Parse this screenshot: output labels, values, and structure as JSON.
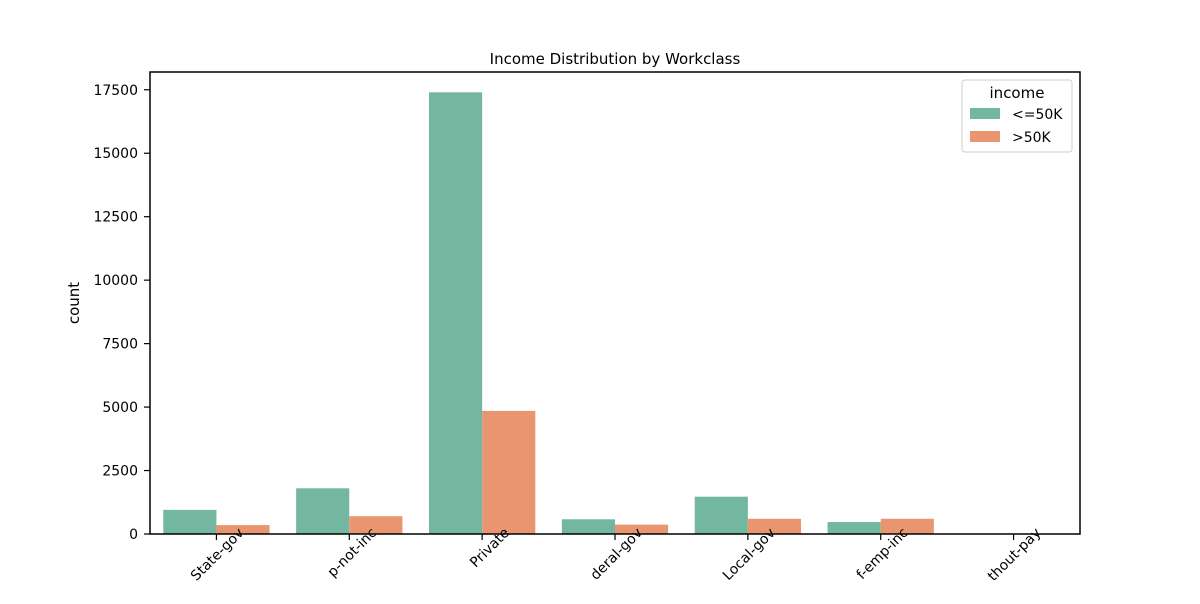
{
  "chart_data": {
    "type": "bar",
    "title": "Income Distribution by Workclass",
    "xlabel": "",
    "ylabel": "count",
    "ylim": [
      0,
      18200
    ],
    "yticks": [
      0,
      2500,
      5000,
      7500,
      10000,
      12500,
      15000,
      17500
    ],
    "categories": [
      "State-gov",
      "Self-emp-not-inc",
      "Private",
      "Federal-gov",
      "Local-gov",
      "Self-emp-inc",
      "Without-pay"
    ],
    "category_tick_labels": [
      "State-gov",
      "p-not-inc",
      "Private",
      "deral-gov",
      "Local-gov",
      "f-emp-inc",
      "thout-pay"
    ],
    "legend": {
      "title": "income",
      "placement": "top-right"
    },
    "series": [
      {
        "name": "<=50K",
        "color": "#73b7a0",
        "values": [
          950,
          1800,
          17400,
          580,
          1470,
          470,
          0
        ]
      },
      {
        "name": ">50K",
        "color": "#e9956f",
        "values": [
          350,
          700,
          4850,
          370,
          600,
          600,
          0
        ]
      }
    ],
    "grid": false
  }
}
